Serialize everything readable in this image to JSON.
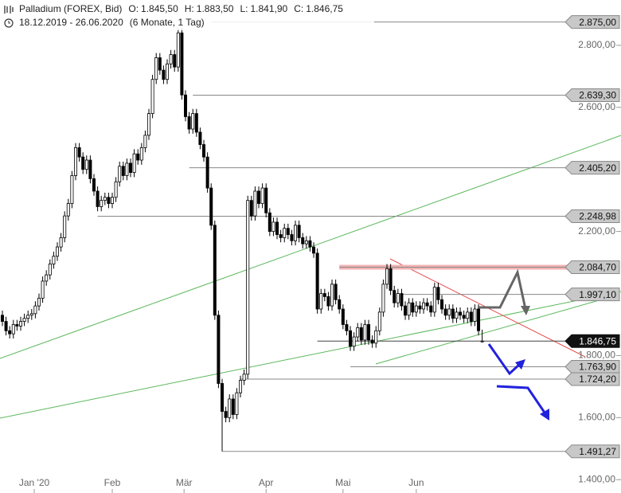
{
  "chart_data": {
    "type": "candlestick",
    "title": "Palladium (FOREX, Bid)",
    "ohlc_summary": [
      {
        "label": "O:",
        "value": "1.845,50"
      },
      {
        "label": "H:",
        "value": "1.883,50"
      },
      {
        "label": "L:",
        "value": "1.841,90"
      },
      {
        "label": "C:",
        "value": "1.846,75"
      }
    ],
    "subtitle": "18.12.2019 - 26.06.2020",
    "period": "(6 Monate, 1 Tag)",
    "xlim": [
      -0.65,
      168.9
    ],
    "ylim": [
      1357,
      2946
    ],
    "xticks": [
      {
        "value": 8.7,
        "label": "Jan '20"
      },
      {
        "value": 30,
        "label": "Feb"
      },
      {
        "value": 49.6,
        "label": "Mär"
      },
      {
        "value": 72,
        "label": "Apr"
      },
      {
        "value": 93,
        "label": "Mai"
      },
      {
        "value": 113,
        "label": "Jun"
      }
    ],
    "yticks": [
      {
        "value": 2800,
        "label": "2.800,00"
      },
      {
        "value": 2600,
        "label": "2.600,00"
      },
      {
        "value": 2200,
        "label": "2.200,00"
      },
      {
        "value": 1800,
        "label": "1.800,00"
      },
      {
        "value": 1600,
        "label": "1.600,00"
      },
      {
        "value": 1400,
        "label": "1.400,00"
      }
    ],
    "up_color": "#ffffff",
    "down_color": "#000000",
    "open": [
      1930,
      1910,
      1880,
      1870,
      1900,
      1895,
      1910,
      1920,
      1930,
      1935,
      1960,
      1985,
      2040,
      2060,
      2095,
      2120,
      2150,
      2180,
      2250,
      2290,
      2380,
      2470,
      2440,
      2400,
      2430,
      2370,
      2330,
      2280,
      2300,
      2310,
      2290,
      2310,
      2360,
      2410,
      2380,
      2420,
      2390,
      2450,
      2430,
      2470,
      2510,
      2580,
      2690,
      2760,
      2720,
      2690,
      2740,
      2770,
      2730,
      2840,
      2640,
      2570,
      2530,
      2580,
      2520,
      2480,
      2440,
      2340,
      2220,
      1930,
      1710,
      1620,
      1600,
      1660,
      1610,
      1680,
      1720,
      1740,
      2300,
      2250,
      2330,
      2290,
      2340,
      2260,
      2200,
      2230,
      2190,
      2180,
      2210,
      2190,
      2170,
      2220,
      2180,
      2160,
      2170,
      2150,
      2130,
      1950,
      2000,
      1990,
      1960,
      2030,
      1980,
      1950,
      1900,
      1880,
      1830,
      1860,
      1890,
      1850,
      1900,
      1850,
      1840,
      1880,
      1940,
      2030,
      2080,
      2010,
      1970,
      2000,
      1960,
      1930,
      1970,
      1940,
      1960,
      1950,
      1970,
      1960,
      1940,
      2020,
      1980,
      1950,
      1930,
      1950,
      1920,
      1940,
      1930,
      1920,
      1940,
      1910,
      1950,
      1845.5
    ],
    "high": [
      1945,
      1925,
      1895,
      1915,
      1915,
      1925,
      1935,
      1945,
      1950,
      1975,
      2000,
      2055,
      2075,
      2110,
      2135,
      2165,
      2195,
      2265,
      2305,
      2395,
      2485,
      2485,
      2455,
      2445,
      2445,
      2385,
      2345,
      2315,
      2325,
      2325,
      2325,
      2375,
      2425,
      2425,
      2435,
      2435,
      2465,
      2465,
      2485,
      2525,
      2595,
      2705,
      2775,
      2775,
      2735,
      2755,
      2785,
      2785,
      2855,
      2855,
      2655,
      2585,
      2595,
      2595,
      2535,
      2495,
      2455,
      2355,
      2235,
      1945,
      1725,
      1635,
      1675,
      1675,
      1695,
      1735,
      1755,
      2315,
      2315,
      2345,
      2345,
      2355,
      2355,
      2275,
      2245,
      2245,
      2205,
      2225,
      2225,
      2205,
      2235,
      2235,
      2195,
      2185,
      2185,
      2165,
      2145,
      2015,
      2015,
      2005,
      2045,
      2045,
      1995,
      1965,
      1915,
      1895,
      1875,
      1905,
      1905,
      1915,
      1915,
      1865,
      1895,
      1955,
      2045,
      2095,
      2095,
      2025,
      2015,
      2015,
      1975,
      1985,
      1985,
      1975,
      1975,
      1985,
      1985,
      1975,
      2035,
      2035,
      1995,
      1965,
      1965,
      1965,
      1955,
      1955,
      1945,
      1955,
      1955,
      1965,
      1965,
      1883.5
    ],
    "low": [
      1895,
      1865,
      1855,
      1855,
      1880,
      1880,
      1895,
      1905,
      1915,
      1920,
      1945,
      1970,
      2025,
      2045,
      2080,
      2105,
      2135,
      2165,
      2235,
      2275,
      2365,
      2425,
      2385,
      2385,
      2355,
      2315,
      2265,
      2265,
      2285,
      2275,
      2275,
      2295,
      2345,
      2365,
      2365,
      2375,
      2375,
      2415,
      2415,
      2455,
      2495,
      2565,
      2675,
      2705,
      2675,
      2675,
      2725,
      2715,
      2715,
      2625,
      2555,
      2515,
      2515,
      2505,
      2465,
      2425,
      2325,
      2205,
      1915,
      1695,
      1491.27,
      1585,
      1585,
      1595,
      1595,
      1665,
      1705,
      1725,
      2235,
      2235,
      2275,
      2275,
      2245,
      2185,
      2185,
      2175,
      2165,
      2165,
      2175,
      2155,
      2155,
      2165,
      2145,
      2145,
      2135,
      2115,
      1935,
      1935,
      1975,
      1945,
      1945,
      1965,
      1935,
      1885,
      1865,
      1815,
      1815,
      1845,
      1835,
      1835,
      1835,
      1825,
      1825,
      1865,
      1925,
      2015,
      1995,
      1955,
      1955,
      1945,
      1915,
      1915,
      1925,
      1925,
      1935,
      1935,
      1945,
      1925,
      1925,
      1965,
      1935,
      1915,
      1915,
      1905,
      1905,
      1915,
      1905,
      1905,
      1895,
      1895,
      1865,
      1841.9
    ],
    "close": [
      1910,
      1880,
      1870,
      1900,
      1895,
      1910,
      1920,
      1930,
      1935,
      1960,
      1985,
      2040,
      2060,
      2095,
      2120,
      2150,
      2180,
      2250,
      2290,
      2380,
      2470,
      2440,
      2400,
      2430,
      2370,
      2330,
      2280,
      2300,
      2310,
      2290,
      2310,
      2360,
      2410,
      2380,
      2420,
      2390,
      2450,
      2430,
      2470,
      2510,
      2580,
      2690,
      2760,
      2720,
      2690,
      2740,
      2770,
      2730,
      2840,
      2640,
      2570,
      2530,
      2580,
      2520,
      2480,
      2440,
      2340,
      2220,
      1930,
      1710,
      1620,
      1600,
      1660,
      1610,
      1680,
      1720,
      1740,
      2300,
      2250,
      2330,
      2290,
      2340,
      2260,
      2200,
      2230,
      2190,
      2180,
      2210,
      2190,
      2170,
      2220,
      2180,
      2160,
      2170,
      2150,
      2130,
      1950,
      2000,
      1990,
      1960,
      2030,
      1980,
      1950,
      1900,
      1880,
      1830,
      1860,
      1890,
      1850,
      1900,
      1850,
      1840,
      1880,
      1940,
      2030,
      2080,
      2010,
      1970,
      2000,
      1960,
      1930,
      1970,
      1940,
      1960,
      1950,
      1970,
      1960,
      1940,
      2020,
      1980,
      1950,
      1930,
      1950,
      1920,
      1940,
      1930,
      1920,
      1940,
      1910,
      1950,
      1880,
      1846.75
    ],
    "levels": [
      {
        "value": 2875,
        "label": "2.875,00",
        "start": 57
      },
      {
        "value": 2639.3,
        "label": "2.639,30",
        "start": 52
      },
      {
        "value": 2405.2,
        "label": "2.405,20",
        "start": 51
      },
      {
        "value": 2248.98,
        "label": "2.248,98",
        "start": 26
      },
      {
        "value": 2084.7,
        "label": "2.084,70",
        "start": 92,
        "band": true
      },
      {
        "value": 1997.1,
        "label": "1.997,10",
        "start": 109
      },
      {
        "value": 1846.75,
        "label": "1.846,75",
        "start": 86,
        "current": true
      },
      {
        "value": 1763.9,
        "label": "1.763,90",
        "start": 95
      },
      {
        "value": 1724.2,
        "label": "1.724,20",
        "start": 65
      },
      {
        "value": 1491.27,
        "label": "1.491,27",
        "start": 60
      }
    ]
  }
}
